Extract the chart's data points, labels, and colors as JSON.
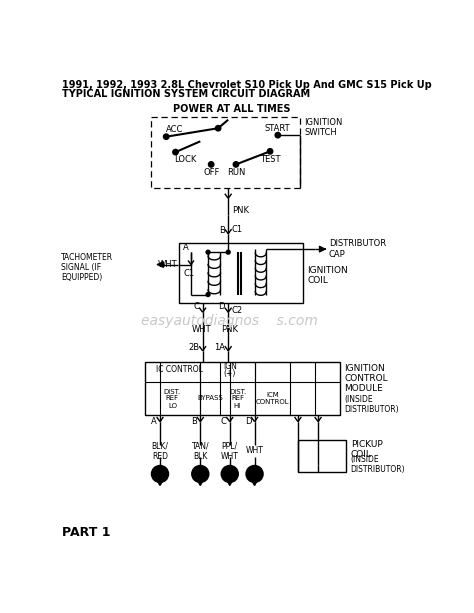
{
  "title1": "1991, 1992, 1993 2.8L Chevrolet S10 Pick Up And GMC S15 Pick Up",
  "title2": "TYPICAL IGNITION SYSTEM CIRCUIT DIAGRAM",
  "bg": "#ffffff",
  "lc": "#000000",
  "wm_text": "easyautodiagnos    s.com",
  "wm_color": "#c8c8c8",
  "power_label": "POWER AT ALL TIMES",
  "ign_switch_label": "IGNITION\nSWITCH",
  "coil_label": "IGNITION\nCOIL",
  "dist_cap": "DISTRIBUTOR\nCAP",
  "tach_label": "TACHOMETER\nSIGNAL (IF\nEQUIPPED)",
  "wht_label": "WHT",
  "icm_label": "IGNITION\nCONTROL\nMODULE",
  "icm_sub": "(INSIDE\nDISTRIBUTOR)",
  "pickup_label": "PICKUP\nCOIL",
  "pickup_sub": "(INSIDE\nDISTRIBUTOR)",
  "part": "PART 1",
  "term_letters": [
    "A",
    "B",
    "C",
    "D"
  ],
  "wire_labels": [
    "BLK/\nRED",
    "TAN/\nBLK",
    "PPL/\nWHT",
    "WHT"
  ]
}
